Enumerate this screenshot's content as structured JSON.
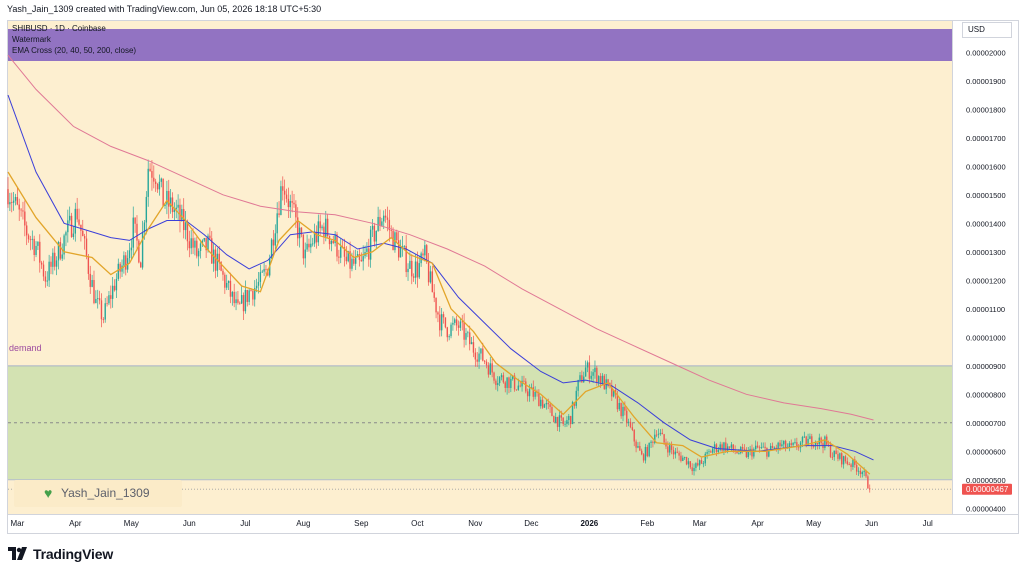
{
  "header": {
    "credit": "Yash_Jain_1309 created with TradingView.com, Jun 05, 2026 18:18 UTC+5:30"
  },
  "legend": {
    "symbol": "SHIBUSD · 1D · Coinbase",
    "watermark_label": "Watermark",
    "indicator": "EMA Cross (20, 40, 50, 200, close)"
  },
  "price_axis": {
    "currency": "USD"
  },
  "zone": {
    "label": "demand"
  },
  "watermark": {
    "text": "Yash_Jain_1309"
  },
  "brand": {
    "name": "TradingView"
  },
  "colors": {
    "bg": "#fdefd0",
    "demand_zone": "#d3e2b2",
    "banner": "#9273c2",
    "up": "#26a69a",
    "down": "#ef5350",
    "ema_fast": "#e2a52a",
    "ema_mid": "#3b3fd9",
    "ema_slow": "#e07895",
    "label_last": "#ef5350"
  },
  "chart_data": {
    "type": "candlestick",
    "ylim": [
      3.8e-06,
      2.11e-05
    ],
    "y_ticks": [
      "0.00002000",
      "0.00001900",
      "0.00001800",
      "0.00001700",
      "0.00001600",
      "0.00001500",
      "0.00001400",
      "0.00001300",
      "0.00001200",
      "0.00001100",
      "0.00001000",
      "0.00000900",
      "0.00000800",
      "0.00000700",
      "0.00000600",
      "0.00000500",
      "0.00000400"
    ],
    "x_labels": [
      {
        "label": "Mar",
        "t": 0
      },
      {
        "label": "Apr",
        "t": 31
      },
      {
        "label": "May",
        "t": 61
      },
      {
        "label": "Jun",
        "t": 92
      },
      {
        "label": "Jul",
        "t": 122
      },
      {
        "label": "Aug",
        "t": 153
      },
      {
        "label": "Sep",
        "t": 184
      },
      {
        "label": "Oct",
        "t": 214
      },
      {
        "label": "Nov",
        "t": 245
      },
      {
        "label": "Dec",
        "t": 275
      },
      {
        "label": "2026",
        "t": 306
      },
      {
        "label": "Feb",
        "t": 337
      },
      {
        "label": "Mar",
        "t": 365
      },
      {
        "label": "Apr",
        "t": 396
      },
      {
        "label": "May",
        "t": 426
      },
      {
        "label": "Jun",
        "t": 457
      },
      {
        "label": "Jul",
        "t": 487
      }
    ],
    "x_range": [
      -5,
      500
    ],
    "last_price": "0.00000467",
    "last_value": 4.67e-06,
    "demand_zone": [
      5e-06,
      9e-06
    ],
    "dashed_level": 7e-06,
    "close_path": [
      [
        -5,
        1.52e-05
      ],
      [
        5,
        1.37e-05
      ],
      [
        10,
        1.32e-05
      ],
      [
        15,
        1.21e-05
      ],
      [
        20,
        1.27e-05
      ],
      [
        26,
        1.36e-05
      ],
      [
        32,
        1.44e-05
      ],
      [
        36,
        1.31e-05
      ],
      [
        42,
        1.12e-05
      ],
      [
        46,
        1.07e-05
      ],
      [
        52,
        1.19e-05
      ],
      [
        58,
        1.28e-05
      ],
      [
        62,
        1.38e-05
      ],
      [
        66,
        1.28e-05
      ],
      [
        70,
        1.6e-05
      ],
      [
        74,
        1.58e-05
      ],
      [
        78,
        1.48e-05
      ],
      [
        84,
        1.45e-05
      ],
      [
        90,
        1.38e-05
      ],
      [
        96,
        1.29e-05
      ],
      [
        102,
        1.32e-05
      ],
      [
        108,
        1.24e-05
      ],
      [
        112,
        1.18e-05
      ],
      [
        118,
        1.09e-05
      ],
      [
        124,
        1.16e-05
      ],
      [
        130,
        1.19e-05
      ],
      [
        134,
        1.25e-05
      ],
      [
        138,
        1.41e-05
      ],
      [
        142,
        1.55e-05
      ],
      [
        146,
        1.46e-05
      ],
      [
        150,
        1.38e-05
      ],
      [
        154,
        1.28e-05
      ],
      [
        158,
        1.34e-05
      ],
      [
        164,
        1.39e-05
      ],
      [
        170,
        1.33e-05
      ],
      [
        176,
        1.26e-05
      ],
      [
        184,
        1.25e-05
      ],
      [
        190,
        1.35e-05
      ],
      [
        196,
        1.44e-05
      ],
      [
        200,
        1.36e-05
      ],
      [
        206,
        1.29e-05
      ],
      [
        210,
        1.25e-05
      ],
      [
        214,
        1.24e-05
      ],
      [
        218,
        1.28e-05
      ],
      [
        222,
        1.16e-05
      ],
      [
        226,
        1.06e-05
      ],
      [
        230,
        1.03e-05
      ],
      [
        236,
        1.04e-05
      ],
      [
        244,
        9.6e-06
      ],
      [
        250,
        9.2e-06
      ],
      [
        256,
        8.6e-06
      ],
      [
        262,
        8.5e-06
      ],
      [
        268,
        8.3e-06
      ],
      [
        274,
        8.1e-06
      ],
      [
        280,
        7.8e-06
      ],
      [
        286,
        7.3e-06
      ],
      [
        292,
        6.9e-06
      ],
      [
        296,
        7.2e-06
      ],
      [
        300,
        8.3e-06
      ],
      [
        304,
        8.9e-06
      ],
      [
        310,
        8.7e-06
      ],
      [
        316,
        8.2e-06
      ],
      [
        320,
        7.8e-06
      ],
      [
        326,
        7.1e-06
      ],
      [
        330,
        6.4e-06
      ],
      [
        334,
        5.8e-06
      ],
      [
        338,
        6.1e-06
      ],
      [
        342,
        6.8e-06
      ],
      [
        346,
        6.3e-06
      ],
      [
        352,
        5.9e-06
      ],
      [
        358,
        5.7e-06
      ],
      [
        362,
        5.4e-06
      ],
      [
        366,
        5.6e-06
      ],
      [
        372,
        6.1e-06
      ],
      [
        378,
        6.2e-06
      ],
      [
        384,
        6e-06
      ],
      [
        390,
        5.9e-06
      ],
      [
        396,
        6.1e-06
      ],
      [
        402,
        6e-06
      ],
      [
        408,
        6.2e-06
      ],
      [
        414,
        6.1e-06
      ],
      [
        420,
        6.3e-06
      ],
      [
        426,
        6.4e-06
      ],
      [
        432,
        6.3e-06
      ],
      [
        436,
        5.9e-06
      ],
      [
        442,
        5.7e-06
      ],
      [
        448,
        5.5e-06
      ],
      [
        452,
        5.3e-06
      ],
      [
        456,
        4.67e-06
      ]
    ],
    "ema_fast": [
      [
        -5,
        1.58e-05
      ],
      [
        10,
        1.42e-05
      ],
      [
        25,
        1.3e-05
      ],
      [
        40,
        1.28e-05
      ],
      [
        50,
        1.22e-05
      ],
      [
        60,
        1.26e-05
      ],
      [
        70,
        1.38e-05
      ],
      [
        80,
        1.48e-05
      ],
      [
        90,
        1.41e-05
      ],
      [
        100,
        1.32e-05
      ],
      [
        110,
        1.25e-05
      ],
      [
        120,
        1.18e-05
      ],
      [
        130,
        1.16e-05
      ],
      [
        140,
        1.34e-05
      ],
      [
        150,
        1.41e-05
      ],
      [
        160,
        1.36e-05
      ],
      [
        170,
        1.34e-05
      ],
      [
        180,
        1.28e-05
      ],
      [
        190,
        1.3e-05
      ],
      [
        200,
        1.35e-05
      ],
      [
        210,
        1.29e-05
      ],
      [
        222,
        1.26e-05
      ],
      [
        232,
        1.1e-05
      ],
      [
        244,
        1.02e-05
      ],
      [
        256,
        9.1e-06
      ],
      [
        268,
        8.5e-06
      ],
      [
        280,
        8e-06
      ],
      [
        292,
        7.3e-06
      ],
      [
        304,
        8.1e-06
      ],
      [
        316,
        8.4e-06
      ],
      [
        330,
        7.2e-06
      ],
      [
        342,
        6.3e-06
      ],
      [
        356,
        6.2e-06
      ],
      [
        366,
        5.8e-06
      ],
      [
        380,
        6e-06
      ],
      [
        400,
        6e-06
      ],
      [
        420,
        6.2e-06
      ],
      [
        432,
        6.4e-06
      ],
      [
        444,
        5.9e-06
      ],
      [
        456,
        5.2e-06
      ]
    ],
    "ema_mid": [
      [
        -5,
        1.85e-05
      ],
      [
        10,
        1.58e-05
      ],
      [
        25,
        1.4e-05
      ],
      [
        40,
        1.37e-05
      ],
      [
        50,
        1.35e-05
      ],
      [
        60,
        1.34e-05
      ],
      [
        70,
        1.38e-05
      ],
      [
        80,
        1.41e-05
      ],
      [
        90,
        1.41e-05
      ],
      [
        100,
        1.36e-05
      ],
      [
        112,
        1.29e-05
      ],
      [
        124,
        1.24e-05
      ],
      [
        134,
        1.27e-05
      ],
      [
        146,
        1.36e-05
      ],
      [
        158,
        1.37e-05
      ],
      [
        170,
        1.36e-05
      ],
      [
        182,
        1.31e-05
      ],
      [
        196,
        1.33e-05
      ],
      [
        208,
        1.31e-05
      ],
      [
        222,
        1.26e-05
      ],
      [
        236,
        1.14e-05
      ],
      [
        250,
        1.05e-05
      ],
      [
        264,
        9.6e-06
      ],
      [
        280,
        8.8e-06
      ],
      [
        292,
        8.4e-06
      ],
      [
        304,
        8.5e-06
      ],
      [
        318,
        8.3e-06
      ],
      [
        332,
        7.7e-06
      ],
      [
        346,
        7e-06
      ],
      [
        360,
        6.4e-06
      ],
      [
        374,
        6.1e-06
      ],
      [
        396,
        6e-06
      ],
      [
        420,
        6.2e-06
      ],
      [
        436,
        6.2e-06
      ],
      [
        448,
        6e-06
      ],
      [
        458,
        5.7e-06
      ]
    ],
    "ema_slow": [
      [
        -5,
        1.99e-05
      ],
      [
        10,
        1.87e-05
      ],
      [
        30,
        1.74e-05
      ],
      [
        50,
        1.67e-05
      ],
      [
        70,
        1.62e-05
      ],
      [
        90,
        1.56e-05
      ],
      [
        110,
        1.5e-05
      ],
      [
        130,
        1.46e-05
      ],
      [
        150,
        1.44e-05
      ],
      [
        170,
        1.43e-05
      ],
      [
        190,
        1.4e-05
      ],
      [
        210,
        1.36e-05
      ],
      [
        230,
        1.31e-05
      ],
      [
        250,
        1.25e-05
      ],
      [
        270,
        1.17e-05
      ],
      [
        290,
        1.1e-05
      ],
      [
        310,
        1.03e-05
      ],
      [
        330,
        9.7e-06
      ],
      [
        350,
        9.1e-06
      ],
      [
        370,
        8.5e-06
      ],
      [
        390,
        8e-06
      ],
      [
        410,
        7.7e-06
      ],
      [
        430,
        7.5e-06
      ],
      [
        446,
        7.3e-06
      ],
      [
        458,
        7.1e-06
      ]
    ]
  }
}
